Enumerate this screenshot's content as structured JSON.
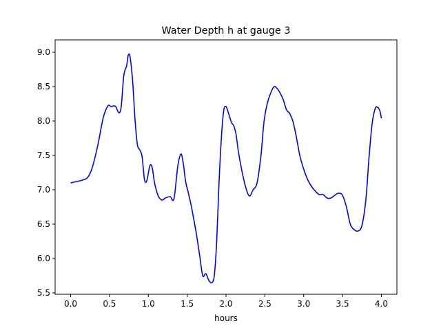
{
  "chart_data": {
    "type": "line",
    "title": "Water Depth h at gauge 3",
    "xlabel": "hours",
    "ylabel": "",
    "xlim": [
      -0.2,
      4.2
    ],
    "ylim": [
      5.48,
      9.18
    ],
    "grid": false,
    "x_ticks": [
      0.0,
      0.5,
      1.0,
      1.5,
      2.0,
      2.5,
      3.0,
      3.5,
      4.0
    ],
    "x_tick_labels": [
      "0.0",
      "0.5",
      "1.0",
      "1.5",
      "2.0",
      "2.5",
      "3.0",
      "3.5",
      "4.0"
    ],
    "y_ticks": [
      5.5,
      6.0,
      6.5,
      7.0,
      7.5,
      8.0,
      8.5,
      9.0
    ],
    "y_tick_labels": [
      "5.5",
      "6.0",
      "6.5",
      "7.0",
      "7.5",
      "8.0",
      "8.5",
      "9.0"
    ],
    "series": [
      {
        "color": "#0000ff",
        "x": [
          0.0,
          0.08,
          0.15,
          0.22,
          0.28,
          0.35,
          0.42,
          0.48,
          0.52,
          0.55,
          0.58,
          0.62,
          0.65,
          0.68,
          0.7,
          0.72,
          0.74,
          0.76,
          0.78,
          0.8,
          0.83,
          0.86,
          0.89,
          0.92,
          0.95,
          0.98,
          1.02,
          1.05,
          1.08,
          1.12,
          1.15,
          1.18,
          1.22,
          1.28,
          1.33,
          1.38,
          1.42,
          1.45,
          1.48,
          1.51,
          1.55,
          1.58,
          1.62,
          1.66,
          1.7,
          1.74,
          1.78,
          1.82,
          1.85,
          1.88,
          1.91,
          1.94,
          1.97,
          2.0,
          2.03,
          2.07,
          2.1,
          2.13,
          2.16,
          2.2,
          2.25,
          2.3,
          2.35,
          2.4,
          2.45,
          2.49,
          2.53,
          2.58,
          2.62,
          2.66,
          2.7,
          2.74,
          2.78,
          2.82,
          2.86,
          2.9,
          2.95,
          3.0,
          3.05,
          3.1,
          3.15,
          3.2,
          3.25,
          3.3,
          3.35,
          3.4,
          3.45,
          3.5,
          3.55,
          3.6,
          3.65,
          3.7,
          3.75,
          3.8,
          3.84,
          3.88,
          3.92,
          3.95,
          3.98,
          4.0
        ],
        "y": [
          7.1,
          7.12,
          7.14,
          7.18,
          7.33,
          7.65,
          8.05,
          8.22,
          8.21,
          8.22,
          8.21,
          8.12,
          8.2,
          8.62,
          8.74,
          8.8,
          8.95,
          8.96,
          8.8,
          8.55,
          8.0,
          7.65,
          7.58,
          7.48,
          7.15,
          7.13,
          7.35,
          7.32,
          7.1,
          6.93,
          6.87,
          6.85,
          6.88,
          6.9,
          6.87,
          7.35,
          7.52,
          7.38,
          7.12,
          6.98,
          6.78,
          6.6,
          6.35,
          6.05,
          5.75,
          5.78,
          5.68,
          5.65,
          5.76,
          6.25,
          7.1,
          7.75,
          8.15,
          8.21,
          8.12,
          7.98,
          7.93,
          7.8,
          7.55,
          7.3,
          7.05,
          6.91,
          7.0,
          7.1,
          7.5,
          8.0,
          8.25,
          8.42,
          8.5,
          8.47,
          8.4,
          8.3,
          8.16,
          8.11,
          8.0,
          7.8,
          7.5,
          7.3,
          7.15,
          7.05,
          6.98,
          6.93,
          6.93,
          6.88,
          6.88,
          6.92,
          6.95,
          6.92,
          6.75,
          6.5,
          6.42,
          6.4,
          6.48,
          6.85,
          7.45,
          7.95,
          8.18,
          8.2,
          8.15,
          8.04
        ]
      }
    ]
  }
}
